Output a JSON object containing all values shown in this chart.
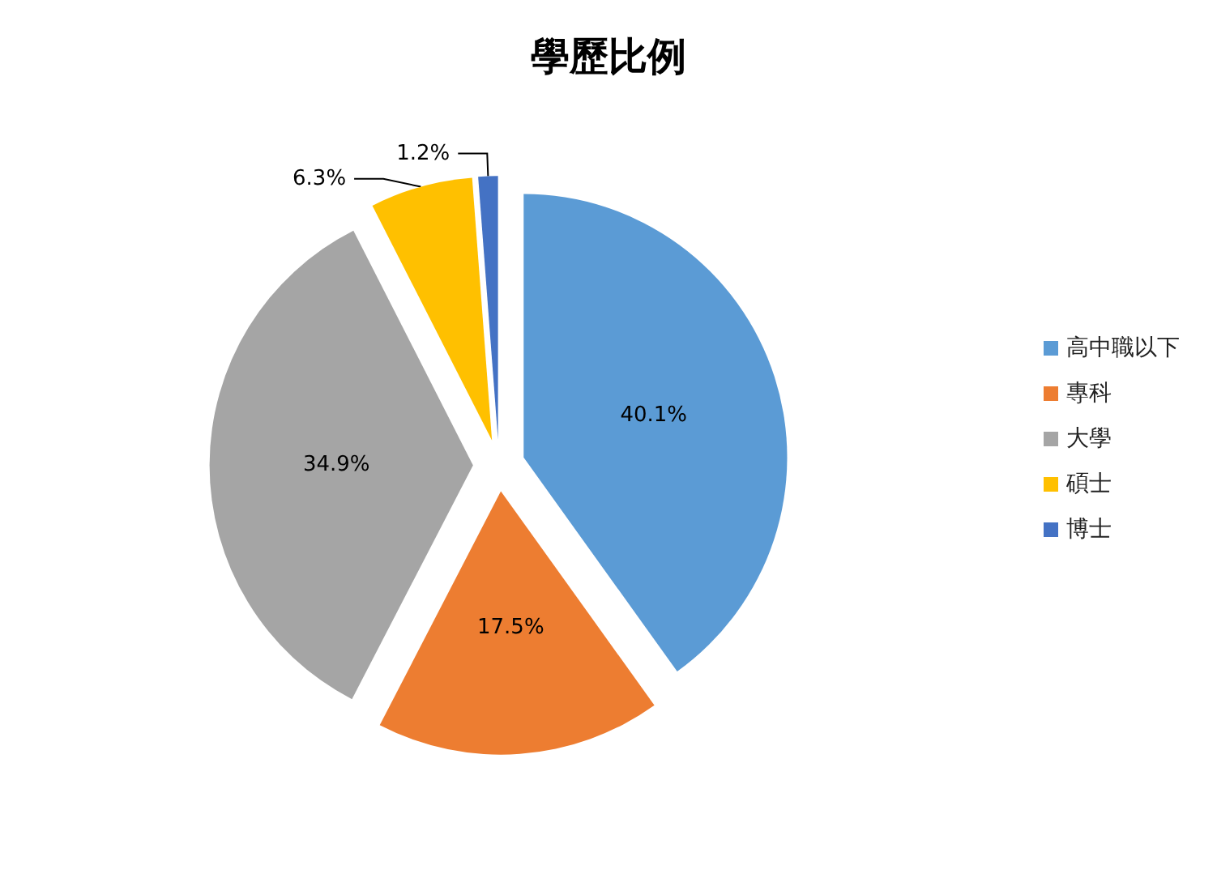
{
  "chart_data": {
    "type": "pie",
    "title": "學歷比例",
    "categories": [
      "高中職以下",
      "專科",
      "大學",
      "碩士",
      "博士"
    ],
    "values": [
      40.1,
      17.5,
      34.9,
      6.3,
      1.2
    ],
    "value_labels": [
      "40.1%",
      "17.5%",
      "34.9%",
      "6.3%",
      "1.2%"
    ],
    "colors": [
      "#5b9bd5",
      "#ed7d31",
      "#a5a5a5",
      "#ffc000",
      "#4472c4"
    ],
    "legend": "right"
  }
}
